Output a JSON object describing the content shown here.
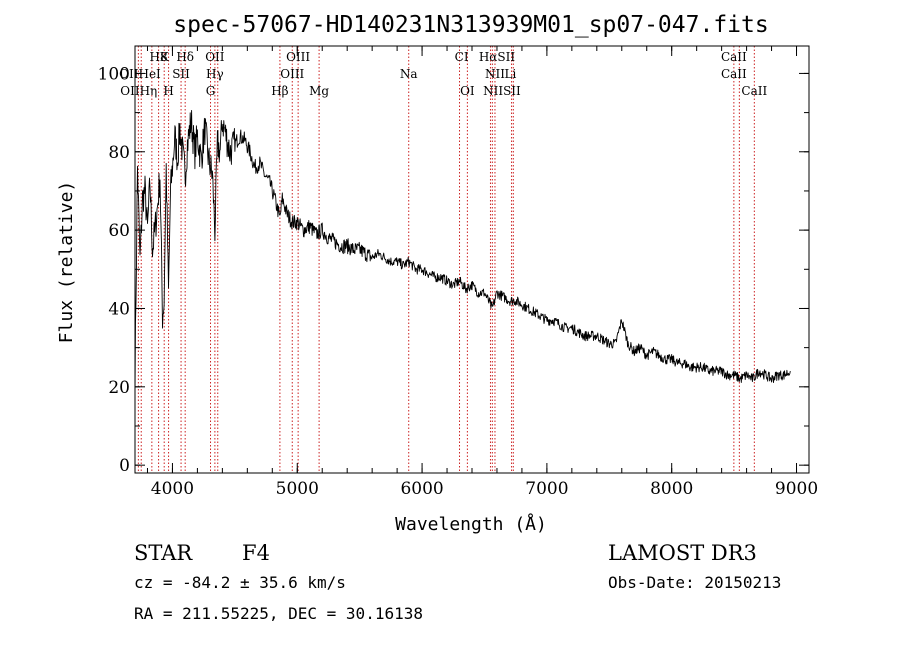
{
  "chart_data": {
    "type": "line",
    "title": "spec-57067-HD140231N313939M01_sp07-047.fits",
    "xlabel": "Wavelength (Å)",
    "ylabel": "Flux (relative)",
    "xlim": [
      3700,
      9100
    ],
    "ylim": [
      -2,
      107
    ],
    "xticks": [
      4000,
      5000,
      6000,
      7000,
      8000,
      9000
    ],
    "yticks": [
      0,
      20,
      40,
      60,
      80,
      100
    ],
    "grid": false,
    "series": [
      {
        "name": "spectrum",
        "x": [
          3700,
          3720,
          3740,
          3760,
          3780,
          3800,
          3820,
          3840,
          3860,
          3880,
          3900,
          3920,
          3933,
          3950,
          3968,
          3985,
          4000,
          4020,
          4040,
          4060,
          4080,
          4102,
          4120,
          4150,
          4180,
          4200,
          4230,
          4260,
          4290,
          4320,
          4340,
          4360,
          4383,
          4400,
          4430,
          4460,
          4500,
          4540,
          4580,
          4620,
          4660,
          4700,
          4740,
          4780,
          4820,
          4861,
          4880,
          4920,
          4960,
          5000,
          5050,
          5100,
          5150,
          5200,
          5250,
          5300,
          5350,
          5400,
          5450,
          5500,
          5550,
          5600,
          5650,
          5700,
          5750,
          5800,
          5850,
          5893,
          5950,
          6000,
          6050,
          6100,
          6150,
          6200,
          6250,
          6300,
          6350,
          6400,
          6450,
          6500,
          6563,
          6600,
          6650,
          6700,
          6750,
          6800,
          6850,
          6900,
          6950,
          7000,
          7050,
          7100,
          7150,
          7200,
          7250,
          7300,
          7350,
          7400,
          7450,
          7500,
          7550,
          7600,
          7650,
          7700,
          7750,
          7800,
          7850,
          7900,
          7950,
          8000,
          8050,
          8100,
          8150,
          8200,
          8250,
          8300,
          8350,
          8400,
          8450,
          8500,
          8550,
          8600,
          8650,
          8700,
          8750,
          8800,
          8850,
          8900,
          8950
        ],
        "values": [
          22,
          76,
          52,
          68,
          70,
          60,
          72,
          55,
          60,
          66,
          74,
          38,
          42,
          76,
          44,
          70,
          76,
          84,
          78,
          86,
          80,
          74,
          82,
          88,
          80,
          84,
          78,
          86,
          78,
          74,
          60,
          82,
          80,
          88,
          84,
          80,
          82,
          84,
          83,
          80,
          76,
          77,
          74,
          72,
          68,
          63,
          68,
          64,
          62,
          62,
          60,
          61,
          59,
          60,
          58,
          57,
          56,
          56,
          55,
          55,
          54,
          53,
          54,
          53,
          52,
          52,
          51,
          52,
          50,
          50,
          49,
          48,
          48,
          47,
          46,
          47,
          45,
          46,
          44,
          44,
          40,
          44,
          43,
          42,
          42,
          41,
          40,
          39,
          38,
          37,
          37,
          36,
          35,
          35,
          34,
          33,
          33,
          33,
          32,
          31,
          31,
          37,
          31,
          29,
          30,
          28,
          29,
          28,
          27,
          27,
          26,
          26,
          25,
          25,
          25,
          24,
          24,
          24,
          23,
          23,
          22,
          23,
          22,
          24,
          23,
          22,
          23,
          23,
          24
        ]
      }
    ],
    "line_markers": [
      {
        "name": "H8",
        "x": 3889,
        "row": 0
      },
      {
        "name": "K",
        "x": 3934,
        "row": 0
      },
      {
        "name": "Hδ",
        "x": 4102,
        "row": 0
      },
      {
        "name": "OII",
        "x": 4340,
        "row": 0
      },
      {
        "name": "OIII",
        "x": 5007,
        "row": 0
      },
      {
        "name": "CI",
        "x": 6317,
        "row": 0
      },
      {
        "name": "HαSII",
        "x": 6600,
        "row": 0
      },
      {
        "name": "CaII",
        "x": 8498,
        "row": 0
      },
      {
        "name": "OIIHeI",
        "x": 3740,
        "row": 1
      },
      {
        "name": "SII",
        "x": 4069,
        "row": 1
      },
      {
        "name": "Hγ",
        "x": 4340,
        "row": 1
      },
      {
        "name": "OIII",
        "x": 4960,
        "row": 1
      },
      {
        "name": "Na",
        "x": 5893,
        "row": 1
      },
      {
        "name": "NII",
        "x": 6584,
        "row": 1
      },
      {
        "name": "Li",
        "x": 6708,
        "row": 1
      },
      {
        "name": "CaII",
        "x": 8498,
        "row": 1
      },
      {
        "name": "OIIHη",
        "x": 3730,
        "row": 2
      },
      {
        "name": "H",
        "x": 3969,
        "row": 2
      },
      {
        "name": "G",
        "x": 4305,
        "row": 2
      },
      {
        "name": "Hβ",
        "x": 4861,
        "row": 2
      },
      {
        "name": "Mg",
        "x": 5175,
        "row": 2
      },
      {
        "name": "OI",
        "x": 6363,
        "row": 2
      },
      {
        "name": "NIISII",
        "x": 6640,
        "row": 2
      },
      {
        "name": "CaII",
        "x": 8662,
        "row": 2
      }
    ],
    "vlines": [
      3727,
      3750,
      3835,
      3889,
      3934,
      3969,
      4069,
      4102,
      4305,
      4340,
      4363,
      4861,
      4960,
      5007,
      5175,
      5893,
      6300,
      6363,
      6548,
      6563,
      6584,
      6717,
      6731,
      8498,
      8542,
      8662
    ]
  },
  "info": {
    "object_class": "STAR",
    "subclass": "F4",
    "survey": "LAMOST DR3",
    "redshift": "cz = -84.2 ± 35.6 km/s",
    "obs_date": "Obs-Date: 20150213",
    "coords": "RA = 211.55225, DEC =  30.16138"
  },
  "colors": {
    "spectrum": "#000000",
    "vline": "#cc2222",
    "axes": "#000000",
    "background": "#ffffff"
  }
}
